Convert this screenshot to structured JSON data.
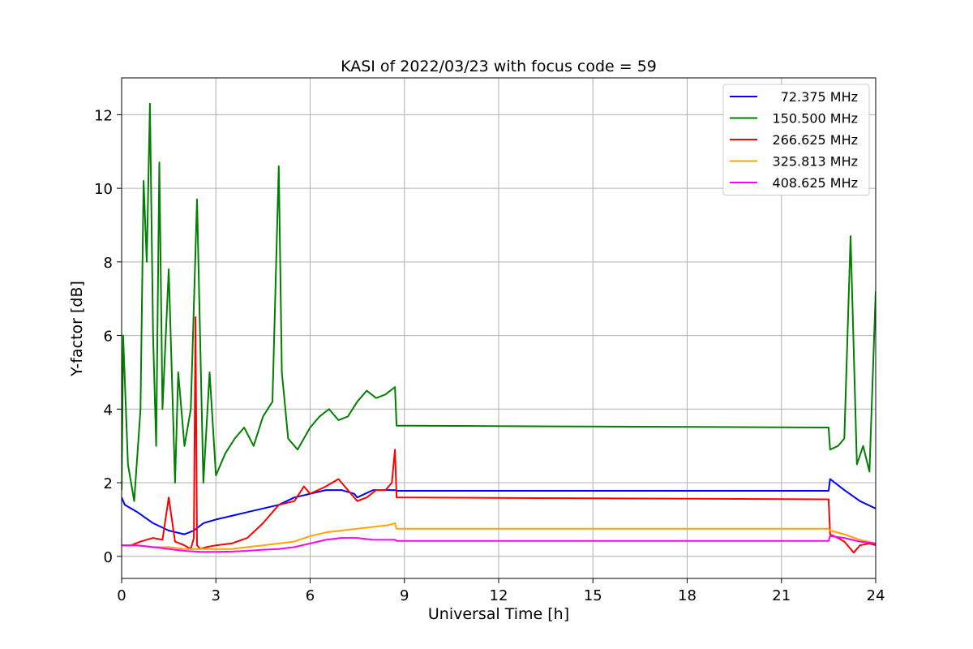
{
  "chart_data": {
    "type": "line",
    "title": "KASI of 2022/03/23 with focus code = 59",
    "xlabel": "Universal Time [h]",
    "ylabel": "Y-factor [dB]",
    "xlim": [
      0,
      24
    ],
    "ylim": [
      -0.6,
      13
    ],
    "xticks": [
      0,
      3,
      6,
      9,
      12,
      15,
      18,
      21,
      24
    ],
    "yticks": [
      0,
      2,
      4,
      6,
      8,
      10,
      12
    ],
    "grid": true,
    "legend_position": "top-right",
    "series": [
      {
        "name": " 72.375 MHz",
        "color": "#0000ff",
        "x": [
          0,
          0.1,
          0.3,
          0.5,
          1.0,
          1.5,
          2.0,
          2.3,
          2.6,
          3.0,
          3.5,
          4.0,
          4.5,
          5.0,
          5.5,
          6.0,
          6.5,
          7.0,
          7.4,
          7.5,
          8.0,
          8.5,
          8.7,
          8.75,
          22.5,
          22.55,
          23.0,
          23.5,
          24.0
        ],
        "y": [
          1.6,
          1.4,
          1.3,
          1.2,
          0.9,
          0.7,
          0.6,
          0.7,
          0.9,
          1.0,
          1.1,
          1.2,
          1.3,
          1.4,
          1.6,
          1.7,
          1.8,
          1.8,
          1.7,
          1.6,
          1.8,
          1.8,
          1.8,
          1.78,
          1.78,
          2.1,
          1.8,
          1.5,
          1.3
        ]
      },
      {
        "name": "150.500 MHz",
        "color": "#008000",
        "x": [
          0,
          0.05,
          0.2,
          0.4,
          0.6,
          0.7,
          0.8,
          0.9,
          1.0,
          1.1,
          1.2,
          1.3,
          1.5,
          1.7,
          1.8,
          2.0,
          2.2,
          2.4,
          2.6,
          2.8,
          3.0,
          3.3,
          3.6,
          3.9,
          4.2,
          4.5,
          4.8,
          5.0,
          5.1,
          5.3,
          5.6,
          6.0,
          6.3,
          6.6,
          6.9,
          7.2,
          7.5,
          7.8,
          8.1,
          8.4,
          8.7,
          8.75,
          22.5,
          22.55,
          22.8,
          23.0,
          23.2,
          23.4,
          23.6,
          23.8,
          24.0
        ],
        "y": [
          1.8,
          6.0,
          2.5,
          1.5,
          4.0,
          10.2,
          8.0,
          12.3,
          6.0,
          3.0,
          10.7,
          4.0,
          7.8,
          2.0,
          5.0,
          3.0,
          4.0,
          9.7,
          2.0,
          5.0,
          2.2,
          2.8,
          3.2,
          3.5,
          3.0,
          3.8,
          4.2,
          10.6,
          5.0,
          3.2,
          2.9,
          3.5,
          3.8,
          4.0,
          3.7,
          3.8,
          4.2,
          4.5,
          4.3,
          4.4,
          4.6,
          3.55,
          3.5,
          2.9,
          3.0,
          3.2,
          8.7,
          2.5,
          3.0,
          2.3,
          7.2
        ]
      },
      {
        "name": "266.625 MHz",
        "color": "#ff0000",
        "x": [
          0,
          0.3,
          0.6,
          1.0,
          1.3,
          1.5,
          1.7,
          2.0,
          2.2,
          2.3,
          2.35,
          2.4,
          2.5,
          2.7,
          3.0,
          3.5,
          4.0,
          4.5,
          5.0,
          5.5,
          5.8,
          6.0,
          6.5,
          6.9,
          7.2,
          7.5,
          7.8,
          8.1,
          8.4,
          8.6,
          8.7,
          8.75,
          22.5,
          22.55,
          22.8,
          23.0,
          23.3,
          23.5,
          23.8,
          24.0
        ],
        "y": [
          0.3,
          0.3,
          0.4,
          0.5,
          0.45,
          1.6,
          0.4,
          0.3,
          0.2,
          0.5,
          6.5,
          0.3,
          0.2,
          0.25,
          0.3,
          0.35,
          0.5,
          0.9,
          1.4,
          1.5,
          1.9,
          1.7,
          1.9,
          2.1,
          1.8,
          1.5,
          1.6,
          1.8,
          1.8,
          2.0,
          2.9,
          1.6,
          1.55,
          0.6,
          0.5,
          0.4,
          0.1,
          0.3,
          0.35,
          0.3
        ]
      },
      {
        "name": "325.813 MHz",
        "color": "#ffa500",
        "x": [
          0,
          0.5,
          1.0,
          1.5,
          2.0,
          2.5,
          3.0,
          3.5,
          4.0,
          4.5,
          5.0,
          5.5,
          6.0,
          6.5,
          7.0,
          7.5,
          8.0,
          8.5,
          8.7,
          8.75,
          22.5,
          22.55,
          23.0,
          23.5,
          24.0
        ],
        "y": [
          0.3,
          0.3,
          0.25,
          0.25,
          0.2,
          0.2,
          0.2,
          0.2,
          0.25,
          0.3,
          0.35,
          0.4,
          0.55,
          0.65,
          0.7,
          0.75,
          0.8,
          0.85,
          0.9,
          0.75,
          0.75,
          0.7,
          0.6,
          0.45,
          0.35
        ]
      },
      {
        "name": "408.625 MHz",
        "color": "#ff00ff",
        "x": [
          0,
          0.5,
          1.0,
          1.5,
          2.0,
          2.5,
          3.0,
          3.5,
          4.0,
          4.5,
          5.0,
          5.5,
          6.0,
          6.5,
          7.0,
          7.5,
          8.0,
          8.5,
          8.7,
          8.75,
          22.5,
          22.55,
          23.0,
          23.5,
          24.0
        ],
        "y": [
          0.3,
          0.3,
          0.25,
          0.2,
          0.15,
          0.12,
          0.12,
          0.13,
          0.15,
          0.18,
          0.2,
          0.25,
          0.35,
          0.45,
          0.5,
          0.5,
          0.45,
          0.45,
          0.45,
          0.42,
          0.42,
          0.55,
          0.5,
          0.4,
          0.35
        ]
      }
    ]
  }
}
